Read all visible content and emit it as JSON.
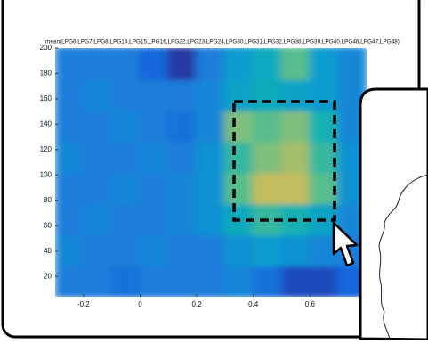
{
  "chart_data": {
    "type": "heatmap",
    "title": "mean(LPG6,LPG7,LPG8,LPG14,LPG15,LPG16,LPG22,LPG23,LPG24,LPG30,LPG31,LPG32,LPG38,LPG39,LPG40,LPG46,LPG47,LPG48)",
    "colormap": "parula",
    "xlim": [
      -0.3,
      0.8
    ],
    "ylim": [
      4,
      200
    ],
    "xticks": [
      -0.2,
      0,
      0.2,
      0.4,
      0.6
    ],
    "yticks": [
      20,
      40,
      60,
      80,
      100,
      120,
      140,
      160,
      180,
      200
    ],
    "z": [
      [
        0.3,
        0.3,
        0.25,
        0.3,
        0.3,
        0.3,
        0.35,
        0.25,
        0.1,
        0.1,
        0.2
      ],
      [
        0.35,
        0.3,
        0.3,
        0.35,
        0.3,
        0.3,
        0.4,
        0.45,
        0.4,
        0.35,
        0.3
      ],
      [
        0.3,
        0.35,
        0.3,
        0.3,
        0.35,
        0.4,
        0.55,
        0.65,
        0.6,
        0.5,
        0.35
      ],
      [
        0.3,
        0.3,
        0.35,
        0.3,
        0.35,
        0.4,
        0.7,
        0.85,
        0.85,
        0.7,
        0.4
      ],
      [
        0.35,
        0.3,
        0.3,
        0.35,
        0.3,
        0.4,
        0.65,
        0.75,
        0.8,
        0.65,
        0.4
      ],
      [
        0.3,
        0.3,
        0.35,
        0.3,
        0.25,
        0.35,
        0.75,
        0.7,
        0.75,
        0.6,
        0.35
      ],
      [
        0.3,
        0.35,
        0.3,
        0.3,
        0.3,
        0.35,
        0.5,
        0.55,
        0.5,
        0.45,
        0.35
      ],
      [
        0.3,
        0.3,
        0.3,
        0.2,
        0.05,
        0.3,
        0.45,
        0.55,
        0.7,
        0.45,
        0.35
      ]
    ]
  }
}
